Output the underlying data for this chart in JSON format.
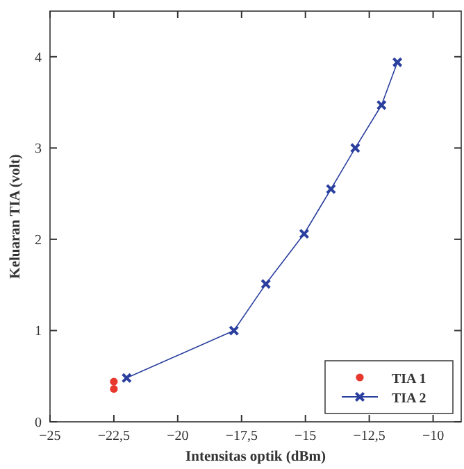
{
  "chart_data": {
    "type": "line",
    "xlabel": "Intensitas optik (dBm)",
    "ylabel": "Keluaran TIA (volt)",
    "xlim": [
      -25,
      -8.9
    ],
    "ylim": [
      0,
      4.5
    ],
    "xticks": [
      {
        "value": -25,
        "label": "−25"
      },
      {
        "value": -22.5,
        "label": "−22,5"
      },
      {
        "value": -20,
        "label": "−20"
      },
      {
        "value": -17.5,
        "label": "−17,5"
      },
      {
        "value": -15,
        "label": "−15"
      },
      {
        "value": -12.5,
        "label": "−12,5"
      },
      {
        "value": -10,
        "label": "−10"
      }
    ],
    "yticks": [
      0,
      1,
      2,
      3,
      4
    ],
    "grid": false,
    "legend": "bottom right",
    "series": [
      {
        "name": "TIA 1",
        "type": "scatter",
        "color": "#e8382e",
        "marker": "circle",
        "x": [
          -22.5,
          -22.5
        ],
        "values": [
          0.36,
          0.44
        ]
      },
      {
        "name": "TIA 2",
        "color": "#2a3f9e",
        "marker": "cross",
        "x": [
          -22,
          -17.8,
          -16.55,
          -15.05,
          -14,
          -13.05,
          -12.02,
          -11.4
        ],
        "values": [
          0.48,
          1.0,
          1.51,
          2.06,
          2.55,
          3.0,
          3.47,
          3.94
        ]
      }
    ]
  }
}
